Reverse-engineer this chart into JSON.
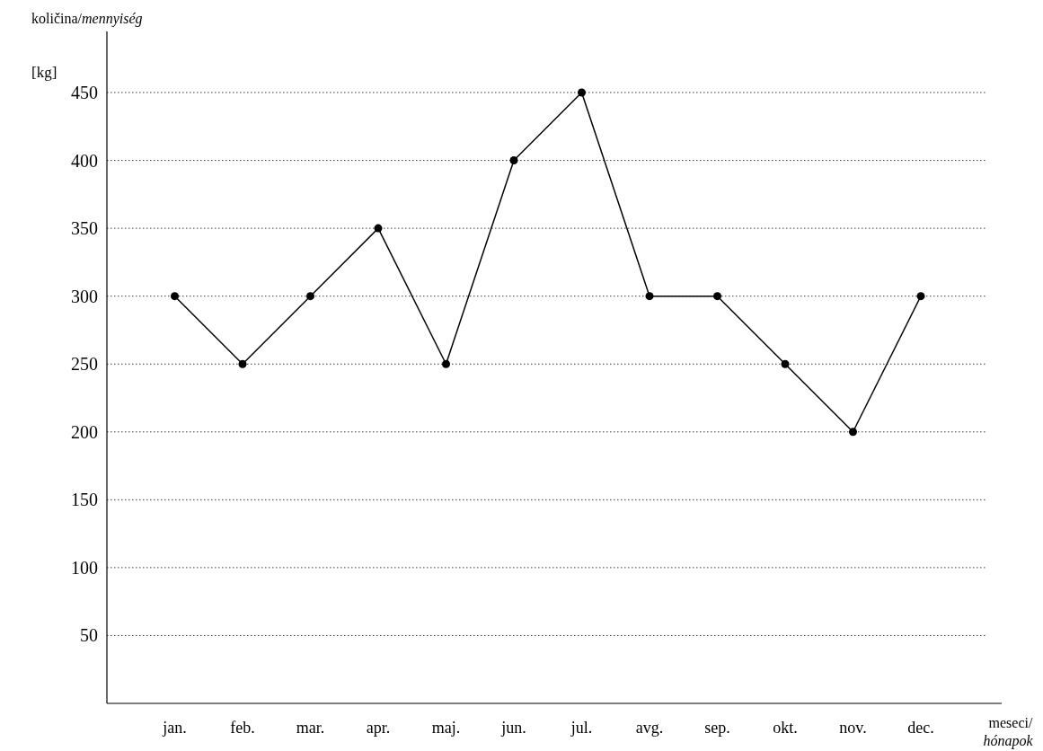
{
  "chart_data": {
    "type": "line",
    "ylabel": "količina/mennyiség",
    "xlabel": "meseci/hónapok",
    "annotations": [
      "[kg]"
    ],
    "categories": [
      "jan.",
      "feb.",
      "mar.",
      "apr.",
      "maj.",
      "jun.",
      "jul.",
      "avg.",
      "sep.",
      "okt.",
      "nov.",
      "dec."
    ],
    "series": [
      {
        "color": "#000000",
        "values": [
          300,
          250,
          300,
          350,
          250,
          400,
          450,
          300,
          300,
          250,
          200,
          300
        ]
      }
    ],
    "ylim": [
      0,
      495
    ],
    "yticks": [
      50,
      100,
      150,
      200,
      250,
      300,
      350,
      400,
      450
    ],
    "grid": "y",
    "marker": "circle",
    "line_style": "solid"
  }
}
